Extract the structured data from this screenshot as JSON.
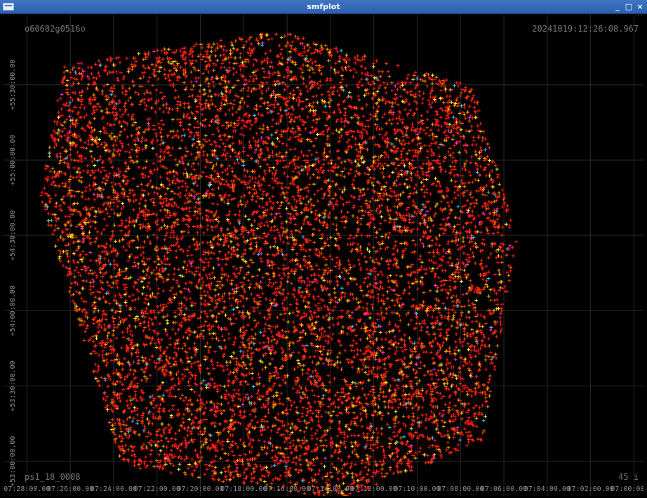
{
  "window": {
    "title": "smfplot",
    "controls": {
      "minimize": "_",
      "maximize": "□",
      "close": "×"
    }
  },
  "corners": {
    "top_left": "o60602g0516o",
    "top_right": "20241019:12:26:08.967",
    "bottom_left": "ps1_18_0008",
    "bottom_right": "45 i"
  },
  "chart_data": {
    "type": "scatter",
    "title": "",
    "xlabel": "",
    "ylabel": "",
    "x_axis": {
      "reversed": true,
      "ticks": [
        {
          "value": 27.0,
          "label": "07:28:00.00"
        },
        {
          "value": 26.5,
          "label": "07:26:00.00"
        },
        {
          "value": 26.0,
          "label": "07:24:00.00"
        },
        {
          "value": 25.5,
          "label": "07:22:00.00"
        },
        {
          "value": 25.0,
          "label": "07:20:00.00"
        },
        {
          "value": 24.5,
          "label": "07:18:00.00"
        },
        {
          "value": 24.0,
          "label": "07:16:00.00"
        },
        {
          "value": 23.5,
          "label": "07:14:00.00"
        },
        {
          "value": 23.0,
          "label": "07:12:00.00"
        },
        {
          "value": 22.5,
          "label": "07:10:00.00"
        },
        {
          "value": 22.0,
          "label": "07:08:00.00"
        },
        {
          "value": 21.5,
          "label": "07:06:00.00"
        },
        {
          "value": 21.0,
          "label": "07:04:00.00"
        },
        {
          "value": 20.5,
          "label": "07:02:00.00"
        },
        {
          "value": 20.0,
          "label": "07:00:00.00"
        }
      ],
      "range": [
        27.27,
        19.89
      ]
    },
    "y_axis": {
      "ticks": [
        {
          "value": 55.5,
          "label": "+55:30:00.00"
        },
        {
          "value": 55.0,
          "label": "+55:00:00.00"
        },
        {
          "value": 54.5,
          "label": "+54:30:00.00"
        },
        {
          "value": 54.0,
          "label": "+54:00:00.00"
        },
        {
          "value": 53.5,
          "label": "+53:30:00.00"
        },
        {
          "value": 53.0,
          "label": "+53:00:00.00"
        }
      ],
      "range": [
        52.77,
        55.97
      ]
    },
    "grid": true,
    "marker": "+",
    "colors": {
      "background": "#000000",
      "grid": "#2a2a2a",
      "marker_palette": [
        "#ff1a1a",
        "#ff3300",
        "#ff6600",
        "#ff9900",
        "#ffcc00",
        "#ffff33",
        "#99ff33",
        "#33ff99",
        "#33ccff",
        "#ff33cc"
      ]
    },
    "field": {
      "footprint_corners": [
        [
          26.57,
          55.63
        ],
        [
          24.12,
          55.86
        ],
        [
          21.86,
          55.49
        ],
        [
          21.35,
          54.49
        ],
        [
          21.74,
          53.14
        ],
        [
          23.36,
          52.74
        ],
        [
          25.9,
          52.97
        ],
        [
          26.85,
          54.75
        ]
      ],
      "dense_region": {
        "x_min": 21.4,
        "x_max": 23.3,
        "y_min": 52.85,
        "y_max": 55.85
      },
      "estimated_sources": 9000
    }
  }
}
